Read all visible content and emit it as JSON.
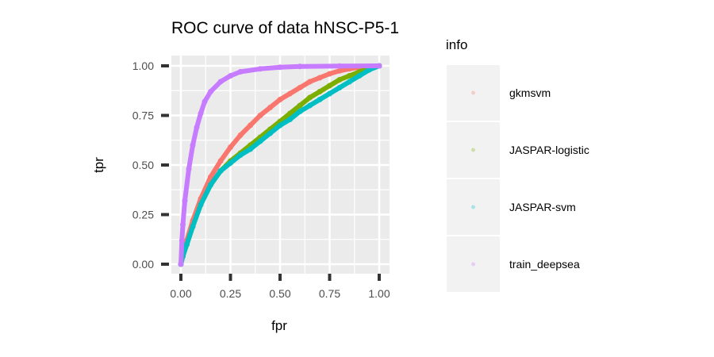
{
  "chart_data": {
    "type": "line",
    "title": "ROC curve of data hNSC-P5-1",
    "xlabel": "fpr",
    "ylabel": "tpr",
    "xlim": [
      0,
      1
    ],
    "ylim": [
      0,
      1
    ],
    "xticks": [
      "0.00",
      "0.25",
      "0.50",
      "0.75",
      "1.00"
    ],
    "yticks": [
      "0.00",
      "0.25",
      "0.50",
      "0.75",
      "1.00"
    ],
    "grid": true,
    "legend": {
      "title": "info",
      "position": "right"
    },
    "series": [
      {
        "name": "gkmsvm",
        "color": "#F8766D",
        "points": [
          [
            0,
            0
          ],
          [
            0.01,
            0.05
          ],
          [
            0.03,
            0.12
          ],
          [
            0.06,
            0.22
          ],
          [
            0.1,
            0.33
          ],
          [
            0.15,
            0.44
          ],
          [
            0.2,
            0.52
          ],
          [
            0.25,
            0.59
          ],
          [
            0.3,
            0.65
          ],
          [
            0.35,
            0.7
          ],
          [
            0.4,
            0.75
          ],
          [
            0.45,
            0.79
          ],
          [
            0.5,
            0.83
          ],
          [
            0.55,
            0.86
          ],
          [
            0.6,
            0.89
          ],
          [
            0.65,
            0.92
          ],
          [
            0.7,
            0.94
          ],
          [
            0.75,
            0.96
          ],
          [
            0.8,
            0.975
          ],
          [
            0.85,
            0.985
          ],
          [
            0.9,
            0.993
          ],
          [
            0.95,
            0.998
          ],
          [
            1,
            1
          ]
        ]
      },
      {
        "name": "JASPAR-logistic",
        "color": "#7CAE00",
        "points": [
          [
            0,
            0
          ],
          [
            0.01,
            0.04
          ],
          [
            0.03,
            0.1
          ],
          [
            0.06,
            0.19
          ],
          [
            0.1,
            0.3
          ],
          [
            0.15,
            0.4
          ],
          [
            0.2,
            0.47
          ],
          [
            0.25,
            0.52
          ],
          [
            0.3,
            0.56
          ],
          [
            0.35,
            0.6
          ],
          [
            0.4,
            0.64
          ],
          [
            0.45,
            0.68
          ],
          [
            0.5,
            0.72
          ],
          [
            0.55,
            0.76
          ],
          [
            0.6,
            0.8
          ],
          [
            0.65,
            0.84
          ],
          [
            0.7,
            0.87
          ],
          [
            0.75,
            0.9
          ],
          [
            0.8,
            0.93
          ],
          [
            0.85,
            0.95
          ],
          [
            0.9,
            0.97
          ],
          [
            0.95,
            0.99
          ],
          [
            1,
            1
          ]
        ]
      },
      {
        "name": "JASPAR-svm",
        "color": "#00BFC4",
        "points": [
          [
            0,
            0
          ],
          [
            0.01,
            0.04
          ],
          [
            0.03,
            0.1
          ],
          [
            0.06,
            0.19
          ],
          [
            0.1,
            0.3
          ],
          [
            0.15,
            0.4
          ],
          [
            0.2,
            0.47
          ],
          [
            0.25,
            0.51
          ],
          [
            0.3,
            0.55
          ],
          [
            0.35,
            0.58
          ],
          [
            0.4,
            0.62
          ],
          [
            0.45,
            0.66
          ],
          [
            0.5,
            0.7
          ],
          [
            0.55,
            0.73
          ],
          [
            0.6,
            0.77
          ],
          [
            0.65,
            0.8
          ],
          [
            0.7,
            0.83
          ],
          [
            0.75,
            0.86
          ],
          [
            0.8,
            0.89
          ],
          [
            0.85,
            0.92
          ],
          [
            0.9,
            0.95
          ],
          [
            0.95,
            0.98
          ],
          [
            1,
            1
          ]
        ]
      },
      {
        "name": "train_deepsea",
        "color": "#C77CFF",
        "points": [
          [
            0,
            0
          ],
          [
            0.005,
            0.12
          ],
          [
            0.01,
            0.2
          ],
          [
            0.02,
            0.32
          ],
          [
            0.04,
            0.48
          ],
          [
            0.06,
            0.6
          ],
          [
            0.08,
            0.69
          ],
          [
            0.1,
            0.76
          ],
          [
            0.12,
            0.82
          ],
          [
            0.15,
            0.87
          ],
          [
            0.2,
            0.92
          ],
          [
            0.25,
            0.95
          ],
          [
            0.3,
            0.97
          ],
          [
            0.4,
            0.985
          ],
          [
            0.5,
            0.993
          ],
          [
            0.6,
            0.997
          ],
          [
            0.8,
            0.999
          ],
          [
            1,
            1
          ]
        ]
      }
    ]
  }
}
